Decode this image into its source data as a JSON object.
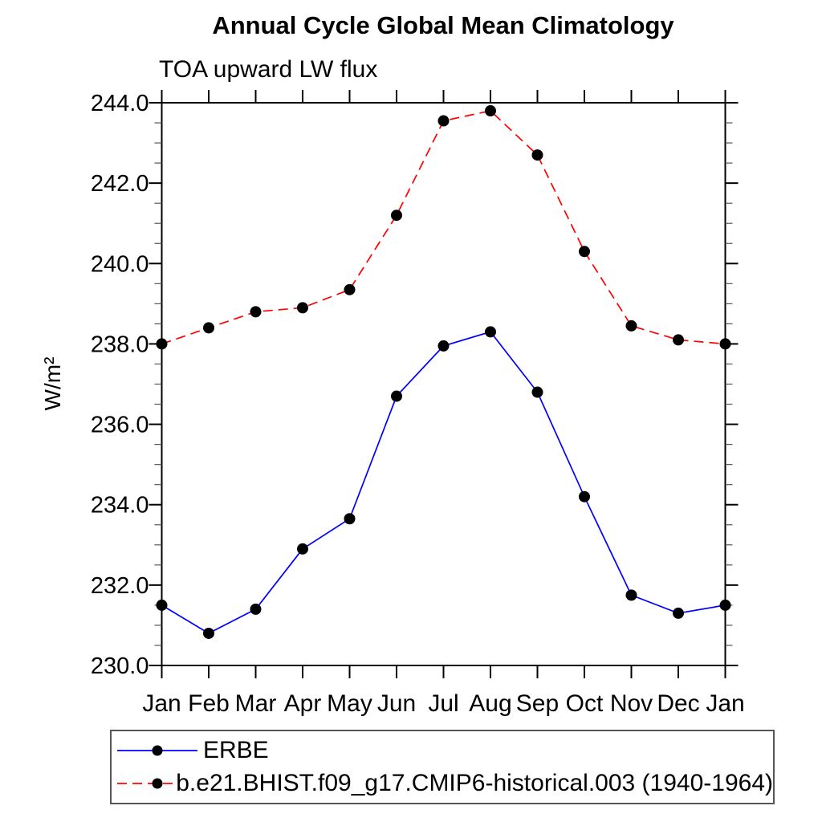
{
  "header": {
    "title": "Annual Cycle Global Mean Climatology",
    "subtitle": "TOA upward LW flux"
  },
  "chart_data": {
    "type": "line",
    "title": "Annual Cycle Global Mean Climatology",
    "subtitle": "TOA upward LW flux",
    "xlabel": "",
    "ylabel": "W/m²",
    "categories": [
      "Jan",
      "Feb",
      "Mar",
      "Apr",
      "May",
      "Jun",
      "Jul",
      "Aug",
      "Sep",
      "Oct",
      "Nov",
      "Dec",
      "Jan"
    ],
    "ylim": [
      230.0,
      244.0
    ],
    "ytick_step": 2.0,
    "ytick_minor_step": 0.5,
    "ytick_labels": [
      "230.0",
      "232.0",
      "234.0",
      "236.0",
      "238.0",
      "240.0",
      "242.0",
      "244.0"
    ],
    "grid": false,
    "legend_position": "bottom",
    "axis_color": "#000000",
    "marker_color": "#000000",
    "series": [
      {
        "name": "ERBE",
        "color": "#0000ff",
        "line_style": "solid",
        "marker": "circle",
        "values": [
          231.5,
          230.8,
          231.4,
          232.9,
          233.65,
          236.7,
          237.95,
          238.3,
          236.8,
          234.2,
          231.75,
          231.3,
          231.5
        ]
      },
      {
        "name": "b.e21.BHIST.f09_g17.CMIP6-historical.003 (1940-1964)",
        "color": "#ff0000",
        "line_style": "dashed",
        "marker": "circle",
        "values": [
          238.0,
          238.4,
          238.8,
          238.9,
          239.35,
          241.2,
          243.55,
          243.8,
          242.7,
          240.3,
          238.45,
          238.1,
          238.0
        ]
      }
    ]
  }
}
